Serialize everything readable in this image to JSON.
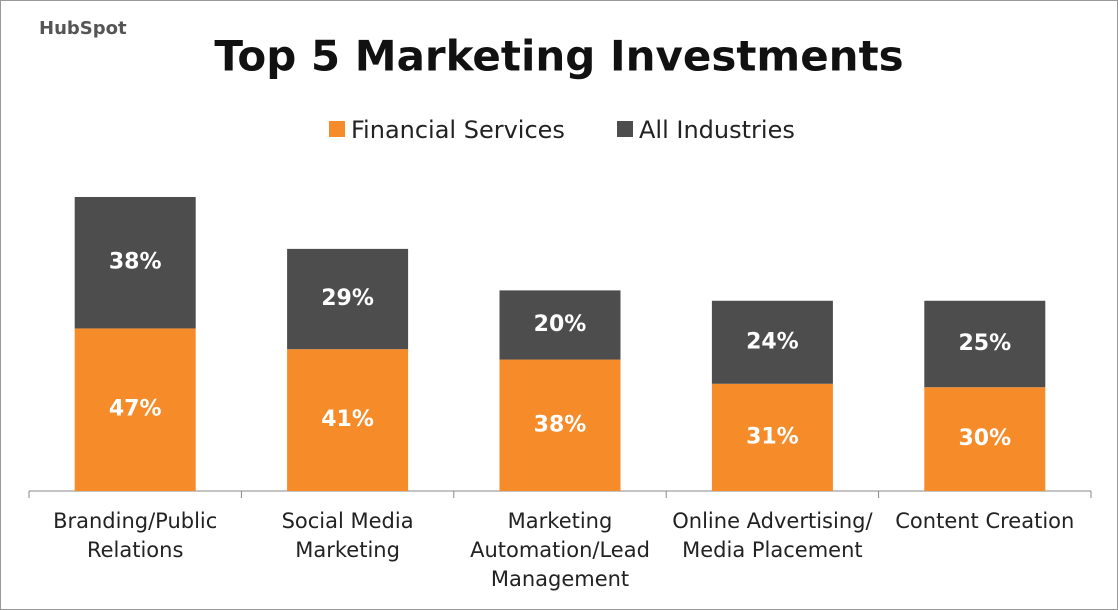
{
  "logo": "HubSpot",
  "chart_data": {
    "type": "stacked-bar",
    "title": "Top 5 Marketing Investments",
    "categories": [
      "Branding/Public\nRelations",
      "Social Media\nMarketing",
      "Marketing\nAutomation/Lead\nManagement",
      "Online Advertising/\nMedia Placement",
      "Content Creation"
    ],
    "series": [
      {
        "name": "Financial Services",
        "color": "#f68b2a",
        "values": [
          47,
          41,
          38,
          31,
          30
        ],
        "value_labels": [
          "47%",
          "41%",
          "38%",
          "31%",
          "30%"
        ]
      },
      {
        "name": "All Industries",
        "color": "#4d4d4d",
        "values": [
          38,
          29,
          20,
          24,
          25
        ],
        "value_labels": [
          "38%",
          "29%",
          "20%",
          "24%",
          "25%"
        ]
      }
    ],
    "legend": "top"
  }
}
